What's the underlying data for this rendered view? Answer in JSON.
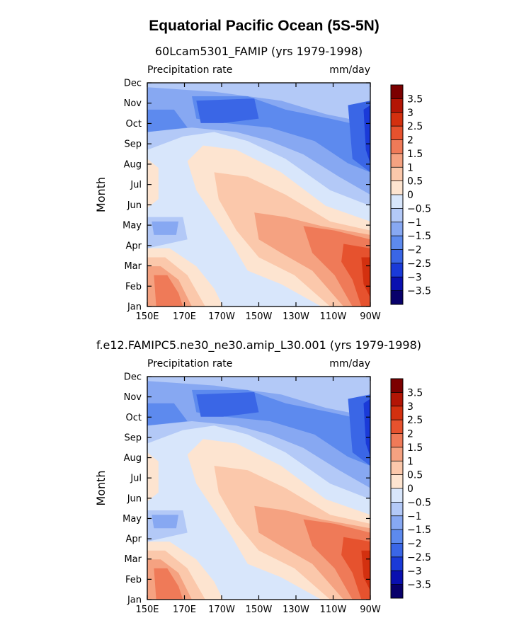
{
  "figure_title": "Equatorial Pacific Ocean (5S-5N)",
  "chart_data": [
    {
      "type": "heatmap",
      "title": "60Lcam5301_FAMIP (yrs 1979-1998)",
      "left_label": "Precipitation rate",
      "units": "mm/day",
      "ylabel": "Month",
      "x_ticks": [
        "150E",
        "170E",
        "170W",
        "150W",
        "130W",
        "110W",
        "90W"
      ],
      "y_ticks": [
        "Jan",
        "Feb",
        "Mar",
        "Apr",
        "May",
        "Jun",
        "Jul",
        "Aug",
        "Sep",
        "Oct",
        "Nov",
        "Dec"
      ],
      "color_levels": [
        -3.5,
        -3,
        -2.5,
        -2,
        -1.5,
        -1,
        -0.5,
        0,
        0.5,
        1,
        1.5,
        2,
        2.5,
        3,
        3.5
      ],
      "colorbar_labels": [
        "3.5",
        "3",
        "2.5",
        "2",
        "1.5",
        "1",
        "0.5",
        "0",
        "−0.5",
        "−1",
        "−1.5",
        "−2",
        "−2.5",
        "−3",
        "−3.5"
      ],
      "colorbar_colors": [
        "#08006b",
        "#0a10b0",
        "#1a3ad8",
        "#3a66e6",
        "#5d8aee",
        "#87a8f2",
        "#b3c9f7",
        "#d8e6fb",
        "#fde4d0",
        "#fbc8ab",
        "#f5a281",
        "#ef7a58",
        "#e6522e",
        "#d3300f",
        "#b31505",
        "#7c0000"
      ]
    },
    {
      "type": "heatmap",
      "title": "f.e12.FAMIPC5.ne30_ne30.amip_L30.001 (yrs 1979-1998)",
      "left_label": "Precipitation rate",
      "units": "mm/day",
      "ylabel": "Month",
      "x_ticks": [
        "150E",
        "170E",
        "170W",
        "150W",
        "130W",
        "110W",
        "90W"
      ],
      "y_ticks": [
        "Jan",
        "Feb",
        "Mar",
        "Apr",
        "May",
        "Jun",
        "Jul",
        "Aug",
        "Sep",
        "Oct",
        "Nov",
        "Dec"
      ],
      "color_levels": [
        -3.5,
        -3,
        -2.5,
        -2,
        -1.5,
        -1,
        -0.5,
        0,
        0.5,
        1,
        1.5,
        2,
        2.5,
        3,
        3.5
      ],
      "colorbar_labels": [
        "3.5",
        "3",
        "2.5",
        "2",
        "1.5",
        "1",
        "0.5",
        "0",
        "−0.5",
        "−1",
        "−1.5",
        "−2",
        "−2.5",
        "−3",
        "−3.5"
      ],
      "colorbar_colors": [
        "#08006b",
        "#0a10b0",
        "#1a3ad8",
        "#3a66e6",
        "#5d8aee",
        "#87a8f2",
        "#b3c9f7",
        "#d8e6fb",
        "#fde4d0",
        "#fbc8ab",
        "#f5a281",
        "#ef7a58",
        "#e6522e",
        "#d3300f",
        "#b31505",
        "#7c0000"
      ]
    }
  ]
}
